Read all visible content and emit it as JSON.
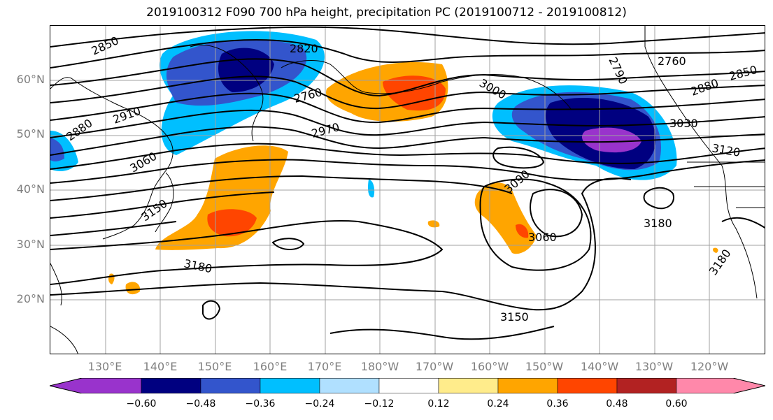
{
  "title": "2019100312 F090 700 hPa height, precipitation PC (2019100712 - 2019100812)",
  "lat_labels": [
    "60°N",
    "50°N",
    "40°N",
    "30°N",
    "20°N"
  ],
  "lon_labels": [
    "130°E",
    "140°E",
    "150°E",
    "160°E",
    "170°E",
    "180°W",
    "170°W",
    "160°W",
    "150°W",
    "140°W",
    "130°W",
    "120°W"
  ],
  "contour_labels": [
    "2850",
    "2820",
    "2760",
    "2910",
    "2880",
    "2970",
    "3060",
    "3150",
    "3180",
    "3090",
    "3060",
    "3150",
    "2760",
    "2790",
    "2850",
    "2880",
    "3030",
    "3120",
    "3180",
    "3180",
    "3000"
  ],
  "colorbar": {
    "ticks": [
      "−0.60",
      "−0.48",
      "−0.36",
      "−0.24",
      "−0.12",
      "0.12",
      "0.24",
      "0.36",
      "0.48",
      "0.60"
    ],
    "colors": [
      "#9933cc",
      "#000080",
      "#3355cc",
      "#00bfff",
      "#b0e0ff",
      "#ffffff",
      "#ffec8b",
      "#ffa500",
      "#ff4500",
      "#b22222",
      "#ff88aa"
    ]
  }
}
